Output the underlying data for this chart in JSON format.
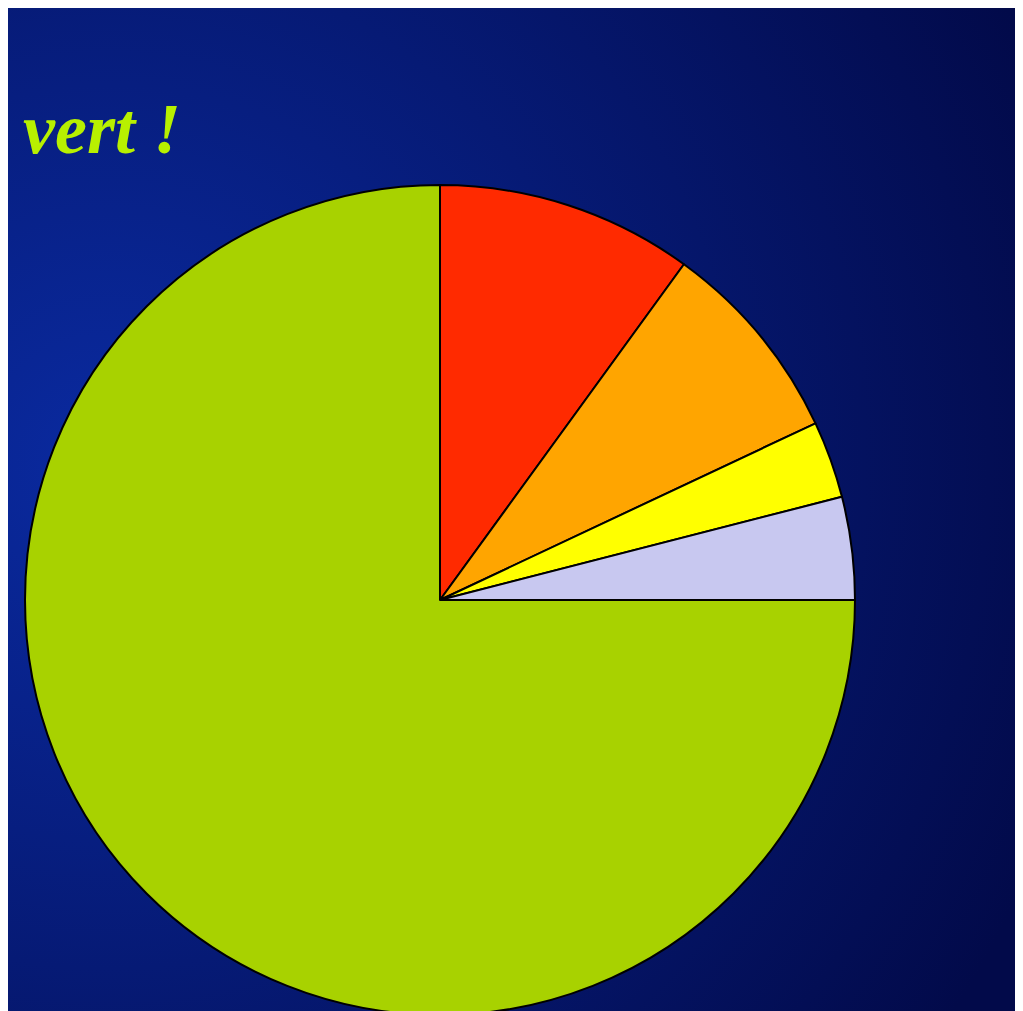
{
  "chart_data": {
    "type": "pie",
    "title": "vert !",
    "categories": [
      null,
      null,
      null,
      null,
      null
    ],
    "values": [
      10,
      8,
      3,
      4,
      75
    ],
    "colors": [
      "#ff2a00",
      "#ffa500",
      "#ffff00",
      "#c8c8f0",
      "#a8d200"
    ]
  }
}
